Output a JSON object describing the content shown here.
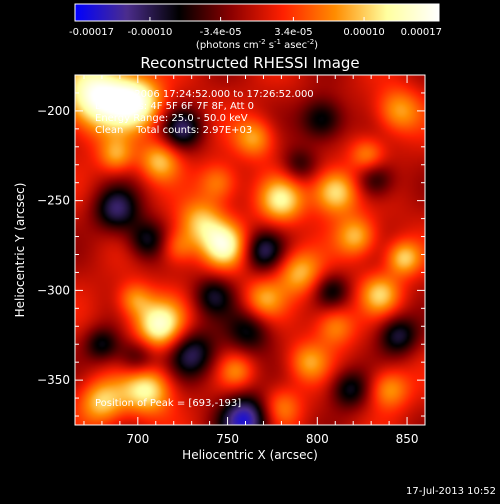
{
  "chart_data": {
    "type": "heatmap",
    "title": "Reconstructed RHESSI Image",
    "xlabel": "Heliocentric X (arcsec)",
    "ylabel": "Heliocentric Y (arcsec)",
    "xlim": [
      665,
      860
    ],
    "ylim": [
      -375,
      -180
    ],
    "x_ticks": [
      700,
      750,
      800,
      850
    ],
    "y_ticks": [
      -350,
      -300,
      -250,
      -200
    ],
    "colorbar": {
      "range": [
        -0.00017,
        0.00017
      ],
      "ticks": [
        -0.00017,
        -0.0001,
        -3.4e-05,
        3.4e-05,
        0.0001,
        0.00017
      ],
      "tick_labels": [
        "-0.00017",
        "-0.00010",
        "-3.4e-05",
        "3.4e-05",
        "0.00010",
        "0.00017"
      ],
      "unit_label": "(photons cm",
      "unit_exp1": "-2",
      "unit_mid": " s",
      "unit_exp2": "-1",
      "unit_end": " asec",
      "unit_exp3": "-2",
      "unit_close": ")",
      "colors": [
        "#0000ff",
        "#4b2d8c",
        "#000000",
        "#8b0000",
        "#ff2000",
        "#ff8c00",
        "#ffffa0",
        "#ffffff"
      ]
    },
    "annotations": {
      "time_range": "18-Dec-2006 17:24:52.000 to 17:26:52.000",
      "detectors": "Detectors: 4F 5F 6F 7F 8F, Att 0",
      "energy": "Energy Range: 25.0 - 50.0 keV",
      "clean": "Clean    Total counts: 2.97E+03",
      "peak": "Position of Peak = [693,-193]"
    },
    "blobs": [
      {
        "x": 678,
        "y": -192,
        "v": 1.0,
        "s": 14
      },
      {
        "x": 700,
        "y": -195,
        "v": 0.75,
        "s": 10
      },
      {
        "x": 712,
        "y": -228,
        "v": 0.55,
        "s": 8
      },
      {
        "x": 688,
        "y": -225,
        "v": 0.45,
        "s": 7
      },
      {
        "x": 735,
        "y": -262,
        "v": 0.55,
        "s": 9
      },
      {
        "x": 748,
        "y": -275,
        "v": 0.75,
        "s": 9
      },
      {
        "x": 745,
        "y": -240,
        "v": 0.45,
        "s": 8
      },
      {
        "x": 722,
        "y": -276,
        "v": 0.4,
        "s": 7
      },
      {
        "x": 712,
        "y": -320,
        "v": 0.85,
        "s": 10
      },
      {
        "x": 698,
        "y": -305,
        "v": 0.45,
        "s": 7
      },
      {
        "x": 705,
        "y": -355,
        "v": 0.75,
        "s": 10
      },
      {
        "x": 680,
        "y": -362,
        "v": 0.6,
        "s": 9
      },
      {
        "x": 765,
        "y": -215,
        "v": 0.5,
        "s": 8
      },
      {
        "x": 780,
        "y": -250,
        "v": 0.65,
        "s": 9
      },
      {
        "x": 790,
        "y": -290,
        "v": 0.55,
        "s": 9
      },
      {
        "x": 770,
        "y": -305,
        "v": 0.45,
        "s": 8
      },
      {
        "x": 810,
        "y": -245,
        "v": 0.75,
        "s": 9
      },
      {
        "x": 822,
        "y": -270,
        "v": 0.55,
        "s": 8
      },
      {
        "x": 835,
        "y": -302,
        "v": 0.55,
        "s": 8
      },
      {
        "x": 848,
        "y": -282,
        "v": 0.6,
        "s": 7
      },
      {
        "x": 845,
        "y": -200,
        "v": 0.5,
        "s": 9
      },
      {
        "x": 828,
        "y": -225,
        "v": 0.45,
        "s": 7
      },
      {
        "x": 810,
        "y": -320,
        "v": 0.45,
        "s": 8
      },
      {
        "x": 795,
        "y": -340,
        "v": 0.45,
        "s": 8
      },
      {
        "x": 840,
        "y": -355,
        "v": 0.5,
        "s": 8
      },
      {
        "x": 780,
        "y": -365,
        "v": 0.4,
        "s": 8
      },
      {
        "x": 755,
        "y": -345,
        "v": 0.35,
        "s": 7
      },
      {
        "x": 688,
        "y": -255,
        "v": -0.6,
        "s": 9
      },
      {
        "x": 705,
        "y": -272,
        "v": -0.5,
        "s": 8
      },
      {
        "x": 725,
        "y": -210,
        "v": -0.55,
        "s": 8
      },
      {
        "x": 700,
        "y": -338,
        "v": -0.5,
        "s": 8
      },
      {
        "x": 730,
        "y": -335,
        "v": -0.6,
        "s": 10
      },
      {
        "x": 762,
        "y": -323,
        "v": -0.45,
        "s": 9
      },
      {
        "x": 742,
        "y": -303,
        "v": -0.45,
        "s": 8
      },
      {
        "x": 770,
        "y": -278,
        "v": -0.55,
        "s": 8
      },
      {
        "x": 760,
        "y": -372,
        "v": -0.85,
        "s": 10
      },
      {
        "x": 803,
        "y": -205,
        "v": -0.55,
        "s": 9
      },
      {
        "x": 832,
        "y": -238,
        "v": -0.5,
        "s": 8
      },
      {
        "x": 845,
        "y": -325,
        "v": -0.55,
        "s": 8
      },
      {
        "x": 818,
        "y": -355,
        "v": -0.5,
        "s": 8
      },
      {
        "x": 808,
        "y": -300,
        "v": -0.4,
        "s": 7
      },
      {
        "x": 680,
        "y": -330,
        "v": -0.45,
        "s": 7
      },
      {
        "x": 790,
        "y": -230,
        "v": -0.35,
        "s": 7
      }
    ]
  },
  "footer": {
    "date": "17-Jul-2013 10:52"
  }
}
